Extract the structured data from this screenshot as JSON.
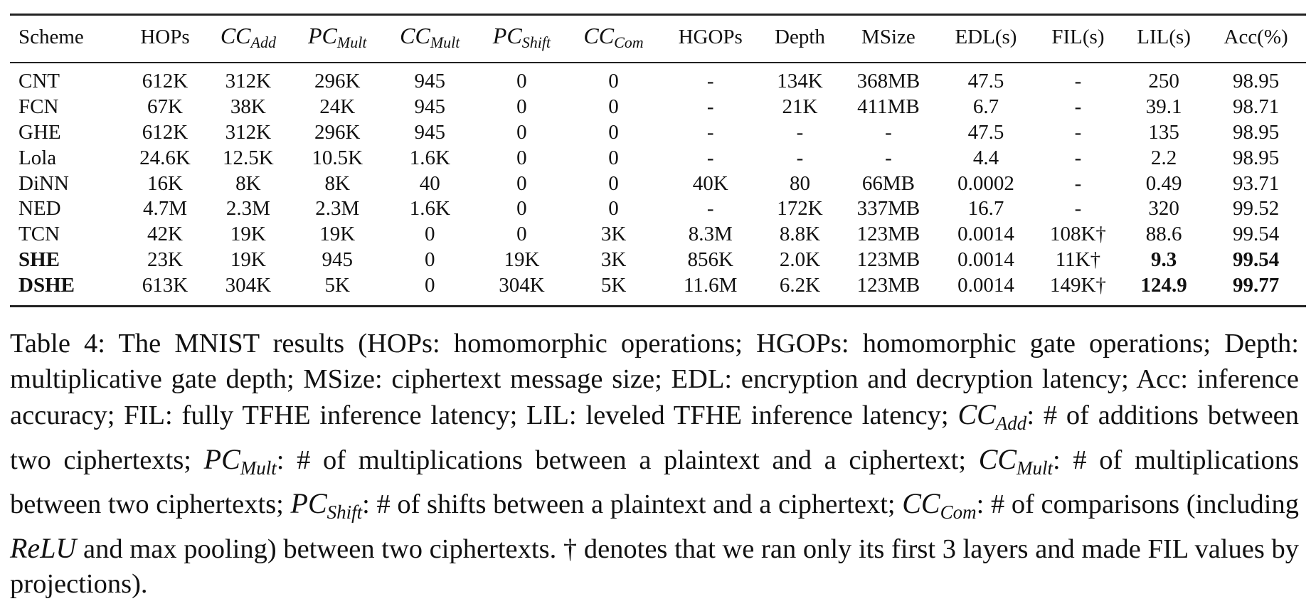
{
  "table": {
    "headers": [
      {
        "text": "Scheme"
      },
      {
        "text": "HOPs"
      },
      {
        "math": "CC",
        "sub": "Add"
      },
      {
        "math": "PC",
        "sub": "Mult"
      },
      {
        "math": "CC",
        "sub": "Mult"
      },
      {
        "math": "PC",
        "sub": "Shift"
      },
      {
        "math": "CC",
        "sub": "Com"
      },
      {
        "text": "HGOPs"
      },
      {
        "text": "Depth"
      },
      {
        "text": "MSize"
      },
      {
        "text": "EDL(s)"
      },
      {
        "text": "FIL(s)"
      },
      {
        "text": "LIL(s)"
      },
      {
        "text": "Acc(%)"
      }
    ],
    "rows": [
      {
        "cells": [
          "CNT",
          "612K",
          "312K",
          "296K",
          "945",
          "0",
          "0",
          "-",
          "134K",
          "368MB",
          "47.5",
          "-",
          "250",
          "98.95"
        ],
        "bold": []
      },
      {
        "cells": [
          "FCN",
          "67K",
          "38K",
          "24K",
          "945",
          "0",
          "0",
          "-",
          "21K",
          "411MB",
          "6.7",
          "-",
          "39.1",
          "98.71"
        ],
        "bold": []
      },
      {
        "cells": [
          "GHE",
          "612K",
          "312K",
          "296K",
          "945",
          "0",
          "0",
          "-",
          "-",
          "-",
          "47.5",
          "-",
          "135",
          "98.95"
        ],
        "bold": []
      },
      {
        "cells": [
          "Lola",
          "24.6K",
          "12.5K",
          "10.5K",
          "1.6K",
          "0",
          "0",
          "-",
          "-",
          "-",
          "4.4",
          "-",
          "2.2",
          "98.95"
        ],
        "bold": []
      },
      {
        "cells": [
          "DiNN",
          "16K",
          "8K",
          "8K",
          "40",
          "0",
          "0",
          "40K",
          "80",
          "66MB",
          "0.0002",
          "-",
          "0.49",
          "93.71"
        ],
        "bold": []
      },
      {
        "cells": [
          "NED",
          "4.7M",
          "2.3M",
          "2.3M",
          "1.6K",
          "0",
          "0",
          "-",
          "172K",
          "337MB",
          "16.7",
          "-",
          "320",
          "99.52"
        ],
        "bold": []
      },
      {
        "cells": [
          "TCN",
          "42K",
          "19K",
          "19K",
          "0",
          "0",
          "3K",
          "8.3M",
          "8.8K",
          "123MB",
          "0.0014",
          "108K†",
          "88.6",
          "99.54"
        ],
        "bold": []
      },
      {
        "cells": [
          "SHE",
          "23K",
          "19K",
          "945",
          "0",
          "19K",
          "3K",
          "856K",
          "2.0K",
          "123MB",
          "0.0014",
          "11K†",
          "9.3",
          "99.54"
        ],
        "bold": [
          0,
          12,
          13
        ]
      },
      {
        "cells": [
          "DSHE",
          "613K",
          "304K",
          "5K",
          "0",
          "304K",
          "5K",
          "11.6M",
          "6.2K",
          "123MB",
          "0.0014",
          "149K†",
          "124.9",
          "99.77"
        ],
        "bold": [
          0,
          12,
          13
        ]
      }
    ]
  },
  "caption": {
    "segments": [
      {
        "t": "Table 4: The MNIST results (HOPs: homomorphic operations; HGOPs: homomorphic gate operations; Depth: multiplicative gate depth; MSize: ciphertext message size; EDL: encryption and decryption latency; Acc: inference accuracy; FIL: fully TFHE inference latency; LIL: leveled TFHE inference latency; "
      },
      {
        "m": "CC",
        "sub": "Add"
      },
      {
        "t": ": # of additions between two ciphertexts; "
      },
      {
        "m": "PC",
        "sub": "Mult"
      },
      {
        "t": ": # of multiplications between a plaintext and a ciphertext; "
      },
      {
        "m": "CC",
        "sub": "Mult"
      },
      {
        "t": ": # of multiplications between two ciphertexts; "
      },
      {
        "m": "PC",
        "sub": "Shift"
      },
      {
        "t": ": # of shifts between a plaintext and a ciphertext; "
      },
      {
        "m": "CC",
        "sub": "Com"
      },
      {
        "t": ": # of comparisons (including "
      },
      {
        "m": "ReLU"
      },
      {
        "t": " and max pooling) between two ciphertexts. † denotes that we ran only its first 3 layers and made FIL values by projections)."
      }
    ]
  }
}
